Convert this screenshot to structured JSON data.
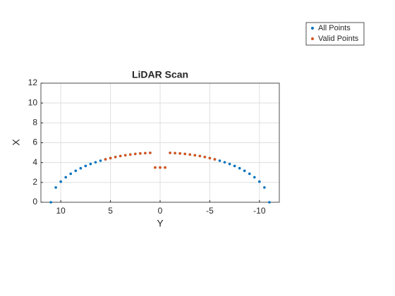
{
  "chart_data": {
    "type": "scatter",
    "title": "LiDAR Scan",
    "x_label": "Y",
    "y_label": "X",
    "xlim": [
      12,
      -12
    ],
    "xticks": [
      10,
      5,
      0,
      -5,
      -10
    ],
    "ylim": [
      0,
      12
    ],
    "yticks": [
      0,
      2,
      4,
      6,
      8,
      10,
      12
    ],
    "grid": true,
    "legend": "northeastoutside",
    "series": [
      {
        "name": "All Points",
        "color": "#0072bd",
        "x": [
          11,
          10.5,
          10,
          9.5,
          9,
          8.5,
          8,
          7.5,
          7,
          6.5,
          6,
          5.5,
          5,
          4.5,
          4,
          3.5,
          3,
          2.5,
          2,
          1.5,
          1,
          0.5,
          0,
          -0.5,
          -1,
          -1.5,
          -2,
          -2.5,
          -3,
          -3.5,
          -4,
          -4.5,
          -5,
          -5.5,
          -6,
          -6.5,
          -7,
          -7.5,
          -8,
          -8.5,
          -9,
          -9.5,
          -10,
          -10.5,
          -11
        ],
        "values": [
          0,
          1.49,
          2.08,
          2.52,
          2.87,
          3.17,
          3.43,
          3.66,
          3.86,
          4.03,
          4.19,
          4.33,
          4.45,
          4.56,
          4.66,
          4.74,
          4.81,
          4.87,
          4.92,
          4.95,
          4.98,
          3.5,
          3.5,
          3.5,
          4.98,
          4.95,
          4.92,
          4.87,
          4.81,
          4.74,
          4.66,
          4.56,
          4.45,
          4.33,
          4.19,
          4.03,
          3.86,
          3.66,
          3.43,
          3.17,
          2.87,
          2.52,
          2.08,
          1.49,
          0
        ]
      },
      {
        "name": "Valid Points",
        "color": "#d95319",
        "x": [
          5.5,
          5,
          4.5,
          4,
          3.5,
          3,
          2.5,
          2,
          1.5,
          1,
          0.5,
          0,
          -0.5,
          -1,
          -1.5,
          -2,
          -2.5,
          -3,
          -3.5,
          -4,
          -4.5,
          -5,
          -5.5
        ],
        "values": [
          4.33,
          4.45,
          4.56,
          4.66,
          4.74,
          4.81,
          4.87,
          4.92,
          4.95,
          4.98,
          3.5,
          3.5,
          3.5,
          4.98,
          4.95,
          4.92,
          4.87,
          4.81,
          4.74,
          4.66,
          4.56,
          4.45,
          4.33
        ]
      }
    ]
  }
}
